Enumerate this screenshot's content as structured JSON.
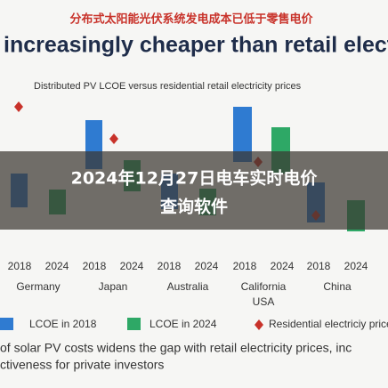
{
  "header": {
    "title_cn": "分布式太阳能光伏系统发电成本已低于零售电价",
    "title_en": "increasingly cheaper than retail electric"
  },
  "chart": {
    "subtitle": "Distributed PV LCOE versus residential retail electricity prices",
    "groups": [
      {
        "years": [
          "2018",
          "2024"
        ],
        "label": [
          "Germany"
        ]
      },
      {
        "years": [
          "2018",
          "2024"
        ],
        "label": [
          "Japan"
        ]
      },
      {
        "years": [
          "2018",
          "2024"
        ],
        "label": [
          "Australia"
        ]
      },
      {
        "years": [
          "2018",
          "2024"
        ],
        "label": [
          "California",
          "USA"
        ]
      },
      {
        "years": [
          "2018",
          "2024"
        ],
        "label": [
          "China"
        ]
      }
    ],
    "legend": [
      "LCOE in 2018",
      "LCOE in 2024",
      "Residential electriciy prices"
    ]
  },
  "overlay": {
    "lines": [
      "2024年12月27日电车实时电价",
      "查询软件"
    ]
  },
  "footer": {
    "lines": [
      "of solar PV costs widens the gap with retail electricity prices, inc",
      "ctiveness for private investors"
    ]
  }
}
